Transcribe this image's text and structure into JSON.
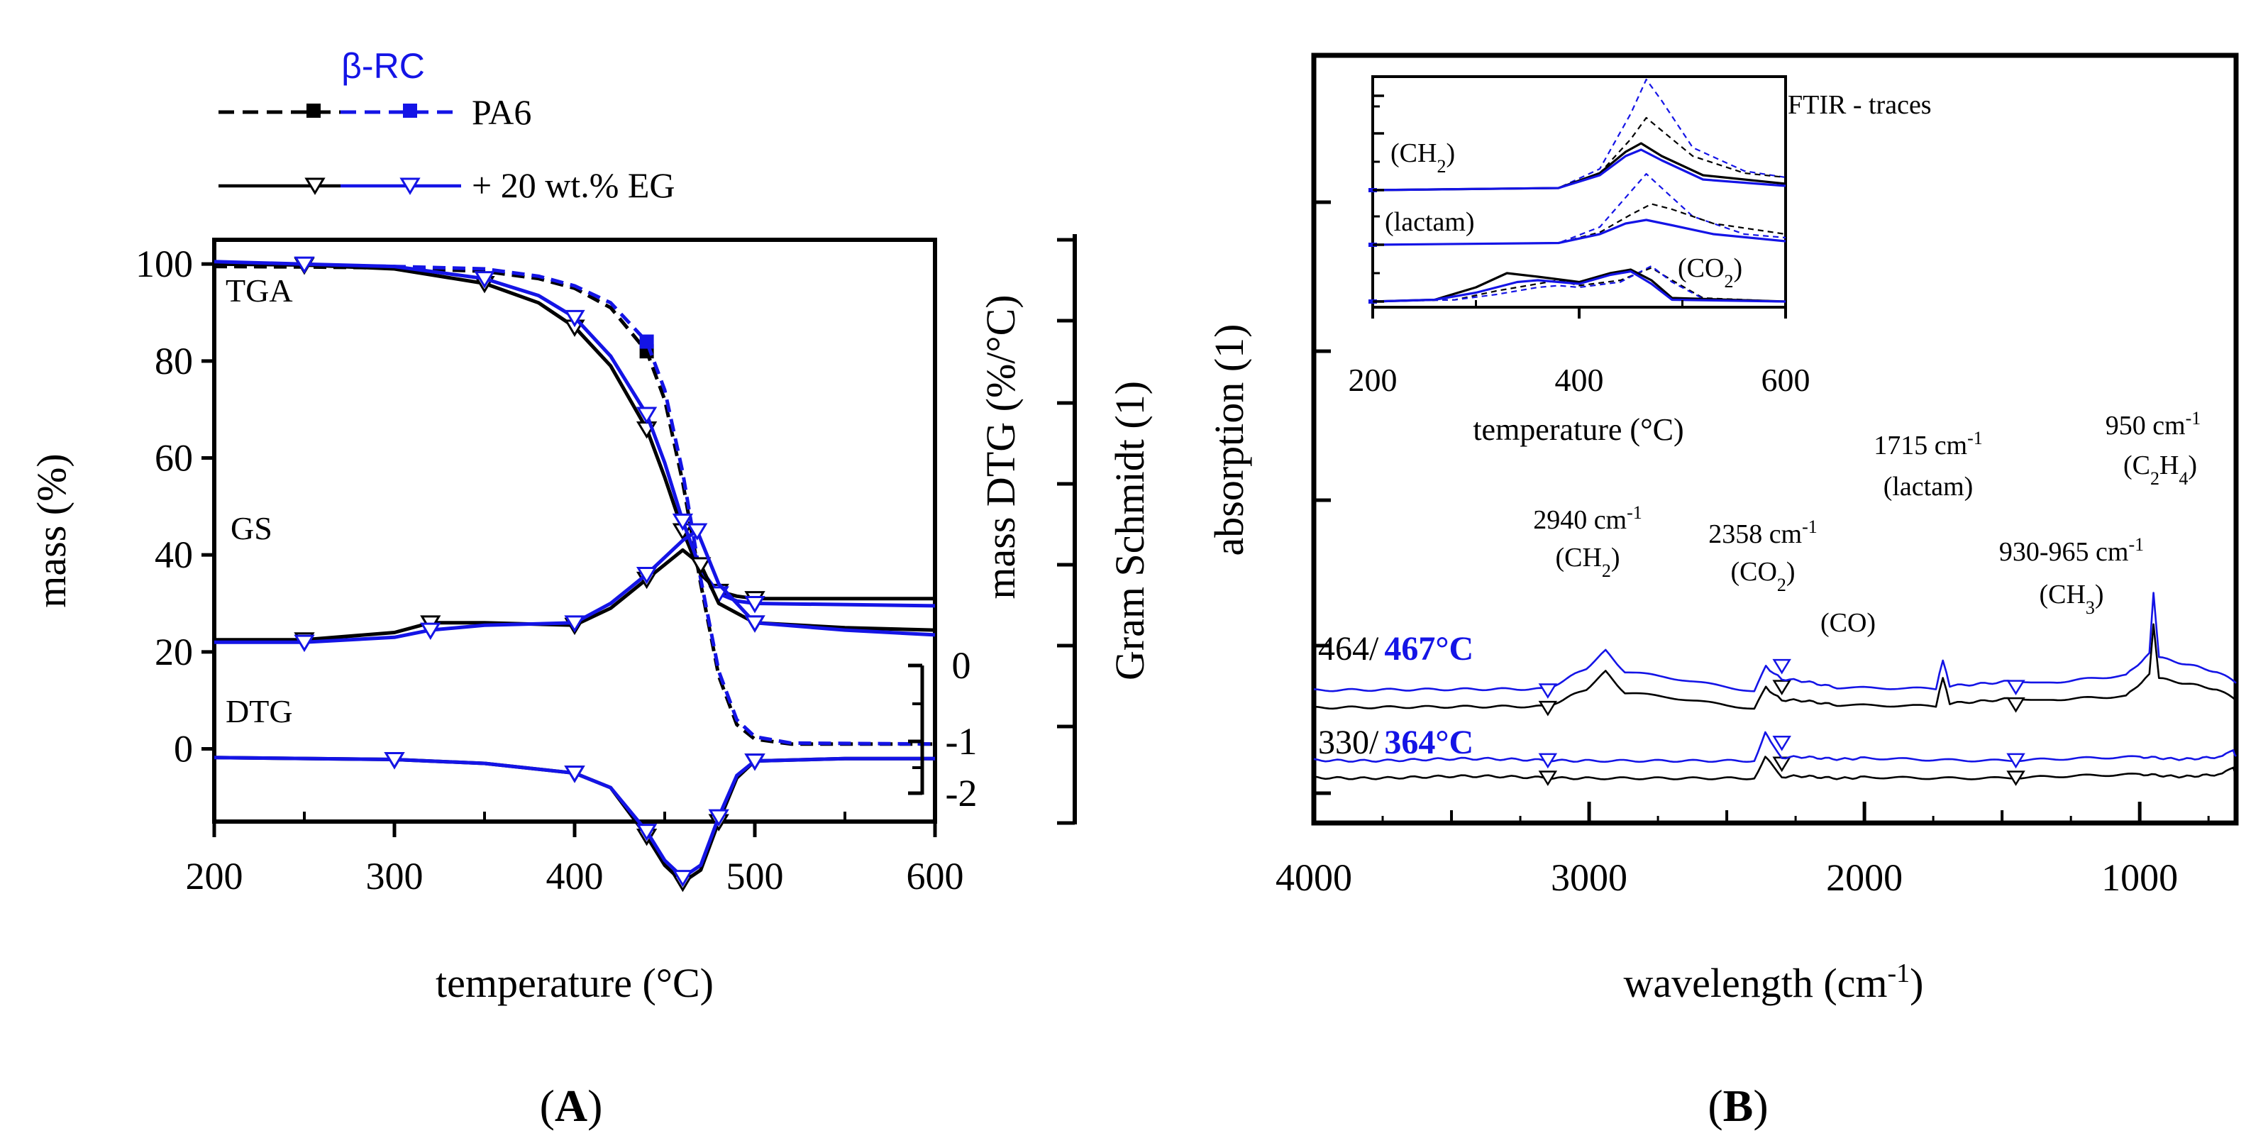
{
  "colors": {
    "black": "#000000",
    "blue": "#1414e6"
  },
  "panels": {
    "A": {
      "caption": "A"
    },
    "B": {
      "caption": "B"
    }
  },
  "chart_data": [
    {
      "id": "A",
      "type": "line",
      "xlabel": "temperature (°C)",
      "ylabel_left": "mass (%)",
      "ylabel_right1": "mass DTG (%/°C)",
      "ylabel_right2": "Gram Schmidt (1)",
      "xlim": [
        200,
        600
      ],
      "ylim": [
        -15,
        105
      ],
      "x_ticks": [
        200,
        300,
        400,
        500,
        600
      ],
      "y_ticks": [
        0,
        20,
        40,
        60,
        80,
        100
      ],
      "dtg_ticks": [
        0,
        -1,
        -2
      ],
      "legend": {
        "header": "β-RC",
        "entries": [
          {
            "label": "PA6",
            "style": "dashed",
            "marker": "square"
          },
          {
            "label": "+ 20 wt.% EG",
            "style": "solid",
            "marker": "triangle-down"
          }
        ],
        "placement": "top-left, above plot"
      },
      "curve_labels": [
        "TGA",
        "GS",
        "DTG"
      ],
      "series": [
        {
          "name": "PA6",
          "curve": "TGA",
          "color": "black",
          "style": "dashed",
          "x": [
            200,
            250,
            300,
            350,
            380,
            400,
            420,
            440,
            450,
            460,
            470,
            480,
            490,
            500,
            520,
            600
          ],
          "y": [
            99.5,
            99.4,
            99.2,
            98.5,
            97,
            95,
            91,
            82,
            72,
            55,
            34,
            15,
            5,
            2,
            1,
            1
          ]
        },
        {
          "name": "PA6",
          "curve": "TGA",
          "color": "blue",
          "style": "dashed",
          "x": [
            200,
            250,
            300,
            350,
            380,
            400,
            420,
            440,
            450,
            460,
            470,
            480,
            490,
            500,
            520,
            600
          ],
          "y": [
            100,
            99.8,
            99.5,
            99,
            97.5,
            95.5,
            92,
            84,
            74,
            57,
            35,
            16,
            6,
            2.5,
            1.2,
            1
          ]
        },
        {
          "name": "+ 20 wt.% EG",
          "curve": "TGA",
          "color": "black",
          "style": "solid",
          "x": [
            200,
            250,
            300,
            350,
            380,
            400,
            420,
            440,
            450,
            460,
            470,
            480,
            490,
            500,
            600
          ],
          "y": [
            100,
            99.8,
            99,
            96,
            92,
            87,
            79,
            66,
            56,
            45,
            36,
            32.5,
            31.5,
            31,
            31
          ]
        },
        {
          "name": "+ 20 wt.% EG",
          "curve": "TGA",
          "color": "blue",
          "style": "solid",
          "x": [
            200,
            250,
            300,
            350,
            380,
            400,
            420,
            440,
            450,
            460,
            470,
            480,
            490,
            500,
            600
          ],
          "y": [
            100.5,
            100,
            99.5,
            97,
            93.5,
            89,
            81,
            69,
            59,
            47,
            37,
            32,
            30.5,
            30,
            29.5
          ]
        },
        {
          "name": "PA6",
          "curve": "GS",
          "color": "black",
          "style": "solid",
          "x": [
            200,
            250,
            300,
            320,
            350,
            400,
            420,
            440,
            460,
            470,
            480,
            500,
            550,
            600
          ],
          "y": [
            22.5,
            22.5,
            24,
            26,
            26,
            25.5,
            29,
            35,
            41,
            38,
            30,
            26,
            25,
            24.5
          ]
        },
        {
          "name": "+ 20 wt.% EG",
          "curve": "GS",
          "color": "blue",
          "style": "solid",
          "x": [
            200,
            250,
            300,
            320,
            350,
            400,
            420,
            440,
            460,
            468,
            480,
            500,
            550,
            600
          ],
          "y": [
            22,
            22,
            23,
            24.5,
            25.5,
            26,
            30,
            36,
            43,
            45,
            34,
            26,
            24.5,
            23.5
          ]
        },
        {
          "name": "PA6",
          "curve": "DTG",
          "color": "black",
          "style": "solid",
          "x": [
            200,
            300,
            350,
            400,
            420,
            440,
            450,
            460,
            470,
            480,
            490,
            500,
            550,
            600
          ],
          "y": [
            -1.8,
            -2.2,
            -3,
            -5,
            -8,
            -18,
            -24,
            -27.5,
            -25,
            -15,
            -6,
            -2.5,
            -2,
            -2
          ]
        },
        {
          "name": "+ 20 wt.% EG",
          "curve": "DTG",
          "color": "blue",
          "style": "solid",
          "x": [
            200,
            300,
            350,
            400,
            420,
            440,
            450,
            460,
            470,
            480,
            490,
            500,
            550,
            600
          ],
          "y": [
            -1.8,
            -2.2,
            -3,
            -5,
            -8,
            -17,
            -23,
            -26.5,
            -24,
            -14,
            -5.5,
            -2.5,
            -2,
            -2
          ]
        }
      ]
    },
    {
      "id": "B",
      "type": "line",
      "xlabel": "wavelength (cm-1)",
      "ylabel": "absorption (1)",
      "xlim": [
        4000,
        650
      ],
      "ylim": [
        0,
        10
      ],
      "x_ticks": [
        4000,
        3000,
        2000,
        1000
      ],
      "y_ticks": [],
      "spectra_labels": [
        {
          "black": "464/",
          "blue": "467°C"
        },
        {
          "black": "330/",
          "blue": "364°C"
        }
      ],
      "peak_annotations": [
        {
          "text": "2940 cm-1",
          "species": "(CH2)"
        },
        {
          "text": "2358 cm-1",
          "species": "(CO2)"
        },
        {
          "text": "",
          "species": "(CO)"
        },
        {
          "text": "1715 cm-1",
          "species": "(lactam)"
        },
        {
          "text": "930-965 cm-1",
          "species": "(CH3)"
        },
        {
          "text": "950 cm-1",
          "species": "(C2H4)"
        }
      ],
      "series": [
        {
          "name": "464",
          "color": "black",
          "x": [
            4000,
            3150,
            3010,
            2940,
            2870,
            2400,
            2358,
            2300,
            2100,
            1740,
            1715,
            1690,
            1450,
            1300,
            1050,
            965,
            950,
            930,
            720,
            650
          ],
          "y": [
            2.6,
            2.6,
            3.1,
            3.6,
            3.0,
            2.6,
            3.2,
            2.8,
            2.7,
            2.6,
            3.5,
            2.7,
            2.9,
            2.8,
            2.9,
            3.5,
            5.0,
            3.4,
            3.1,
            2.8
          ]
        },
        {
          "name": "467°C",
          "color": "blue",
          "x": [
            4000,
            3150,
            3010,
            2940,
            2870,
            2400,
            2358,
            2300,
            2100,
            1740,
            1715,
            1690,
            1450,
            1300,
            1050,
            965,
            950,
            930,
            720,
            650
          ],
          "y": [
            3.1,
            3.1,
            3.7,
            4.2,
            3.6,
            3.1,
            3.8,
            3.4,
            3.2,
            3.1,
            4.0,
            3.2,
            3.4,
            3.3,
            3.5,
            4.1,
            5.9,
            4.0,
            3.6,
            3.3
          ]
        },
        {
          "name": "330",
          "color": "black",
          "x": [
            4000,
            3000,
            2400,
            2360,
            2340,
            2300,
            2000,
            1500,
            1000,
            700,
            660,
            650
          ],
          "y": [
            0.6,
            0.6,
            0.6,
            1.2,
            1.0,
            0.6,
            0.6,
            0.6,
            0.65,
            0.65,
            0.9,
            0.7
          ]
        },
        {
          "name": "364°C",
          "color": "blue",
          "x": [
            4000,
            3000,
            2400,
            2360,
            2340,
            2300,
            2000,
            1500,
            1000,
            700,
            660,
            650
          ],
          "y": [
            1.1,
            1.1,
            1.1,
            1.9,
            1.6,
            1.15,
            1.15,
            1.1,
            1.15,
            1.15,
            1.4,
            1.2
          ]
        }
      ],
      "inset": {
        "title": "FTIR - traces",
        "xlabel": "temperature (°C)",
        "xlim": [
          200,
          600
        ],
        "x_ticks": [
          200,
          400,
          600
        ],
        "trace_labels": [
          "(CH2)",
          "(lactam)",
          "(CO2)"
        ],
        "series": [
          {
            "name": "CH2 PA6",
            "color": "blue",
            "style": "dashed",
            "x": [
              200,
              380,
              420,
              450,
              465,
              480,
              510,
              560,
              600
            ],
            "y": [
              0.0,
              0.05,
              0.5,
              1.8,
              2.6,
              2.1,
              1.0,
              0.45,
              0.3
            ]
          },
          {
            "name": "CH2 PA6",
            "color": "black",
            "style": "dashed",
            "x": [
              200,
              380,
              420,
              450,
              465,
              480,
              510,
              560,
              600
            ],
            "y": [
              0.0,
              0.05,
              0.4,
              1.2,
              1.7,
              1.4,
              0.8,
              0.4,
              0.3
            ]
          },
          {
            "name": "CH2 EG",
            "color": "black",
            "style": "solid",
            "x": [
              200,
              380,
              420,
              445,
              460,
              480,
              520,
              600
            ],
            "y": [
              0.0,
              0.05,
              0.4,
              0.9,
              1.1,
              0.8,
              0.35,
              0.15
            ]
          },
          {
            "name": "CH2 EG",
            "color": "blue",
            "style": "solid",
            "x": [
              200,
              380,
              420,
              445,
              460,
              480,
              520,
              600
            ],
            "y": [
              0.0,
              0.05,
              0.35,
              0.8,
              0.95,
              0.7,
              0.25,
              0.1
            ]
          },
          {
            "name": "lactam PA6",
            "color": "blue",
            "style": "dashed",
            "x": [
              200,
              380,
              420,
              450,
              465,
              480,
              510,
              560,
              600
            ],
            "y": [
              0.0,
              0.05,
              0.5,
              1.5,
              2.0,
              1.6,
              0.8,
              0.3,
              0.2
            ]
          },
          {
            "name": "lactam PA6",
            "color": "black",
            "style": "dashed",
            "x": [
              200,
              380,
              420,
              450,
              470,
              490,
              530,
              600
            ],
            "y": [
              0.0,
              0.05,
              0.35,
              0.85,
              1.15,
              1.0,
              0.6,
              0.3
            ]
          },
          {
            "name": "lactam EG",
            "color": "blue",
            "style": "solid",
            "x": [
              200,
              380,
              420,
              445,
              465,
              490,
              530,
              600
            ],
            "y": [
              0.0,
              0.05,
              0.3,
              0.6,
              0.7,
              0.55,
              0.3,
              0.1
            ]
          },
          {
            "name": "CO2 PA6",
            "color": "black",
            "style": "dashed",
            "x": [
              200,
              280,
              320,
              360,
              380,
              400,
              440,
              470,
              490,
              520,
              600
            ],
            "y": [
              0.0,
              0.05,
              0.3,
              0.5,
              0.6,
              0.45,
              0.6,
              0.95,
              0.6,
              0.1,
              0.0
            ]
          },
          {
            "name": "CO2 PA6",
            "color": "blue",
            "style": "dashed",
            "x": [
              200,
              280,
              320,
              360,
              380,
              400,
              440,
              470,
              490,
              520,
              600
            ],
            "y": [
              0.0,
              0.05,
              0.2,
              0.4,
              0.45,
              0.4,
              0.55,
              1.0,
              0.55,
              0.08,
              0.0
            ]
          },
          {
            "name": "CO2 EG",
            "color": "black",
            "style": "solid",
            "x": [
              200,
              260,
              300,
              330,
              360,
              400,
              430,
              450,
              470,
              490,
              600
            ],
            "y": [
              0.0,
              0.05,
              0.4,
              0.8,
              0.7,
              0.55,
              0.8,
              0.9,
              0.6,
              0.1,
              0.0
            ]
          },
          {
            "name": "CO2 EG",
            "color": "blue",
            "style": "solid",
            "x": [
              200,
              260,
              300,
              340,
              360,
              400,
              430,
              450,
              470,
              490,
              600
            ],
            "y": [
              0.0,
              0.05,
              0.25,
              0.55,
              0.6,
              0.5,
              0.75,
              0.85,
              0.5,
              0.05,
              0.0
            ]
          }
        ]
      }
    }
  ]
}
